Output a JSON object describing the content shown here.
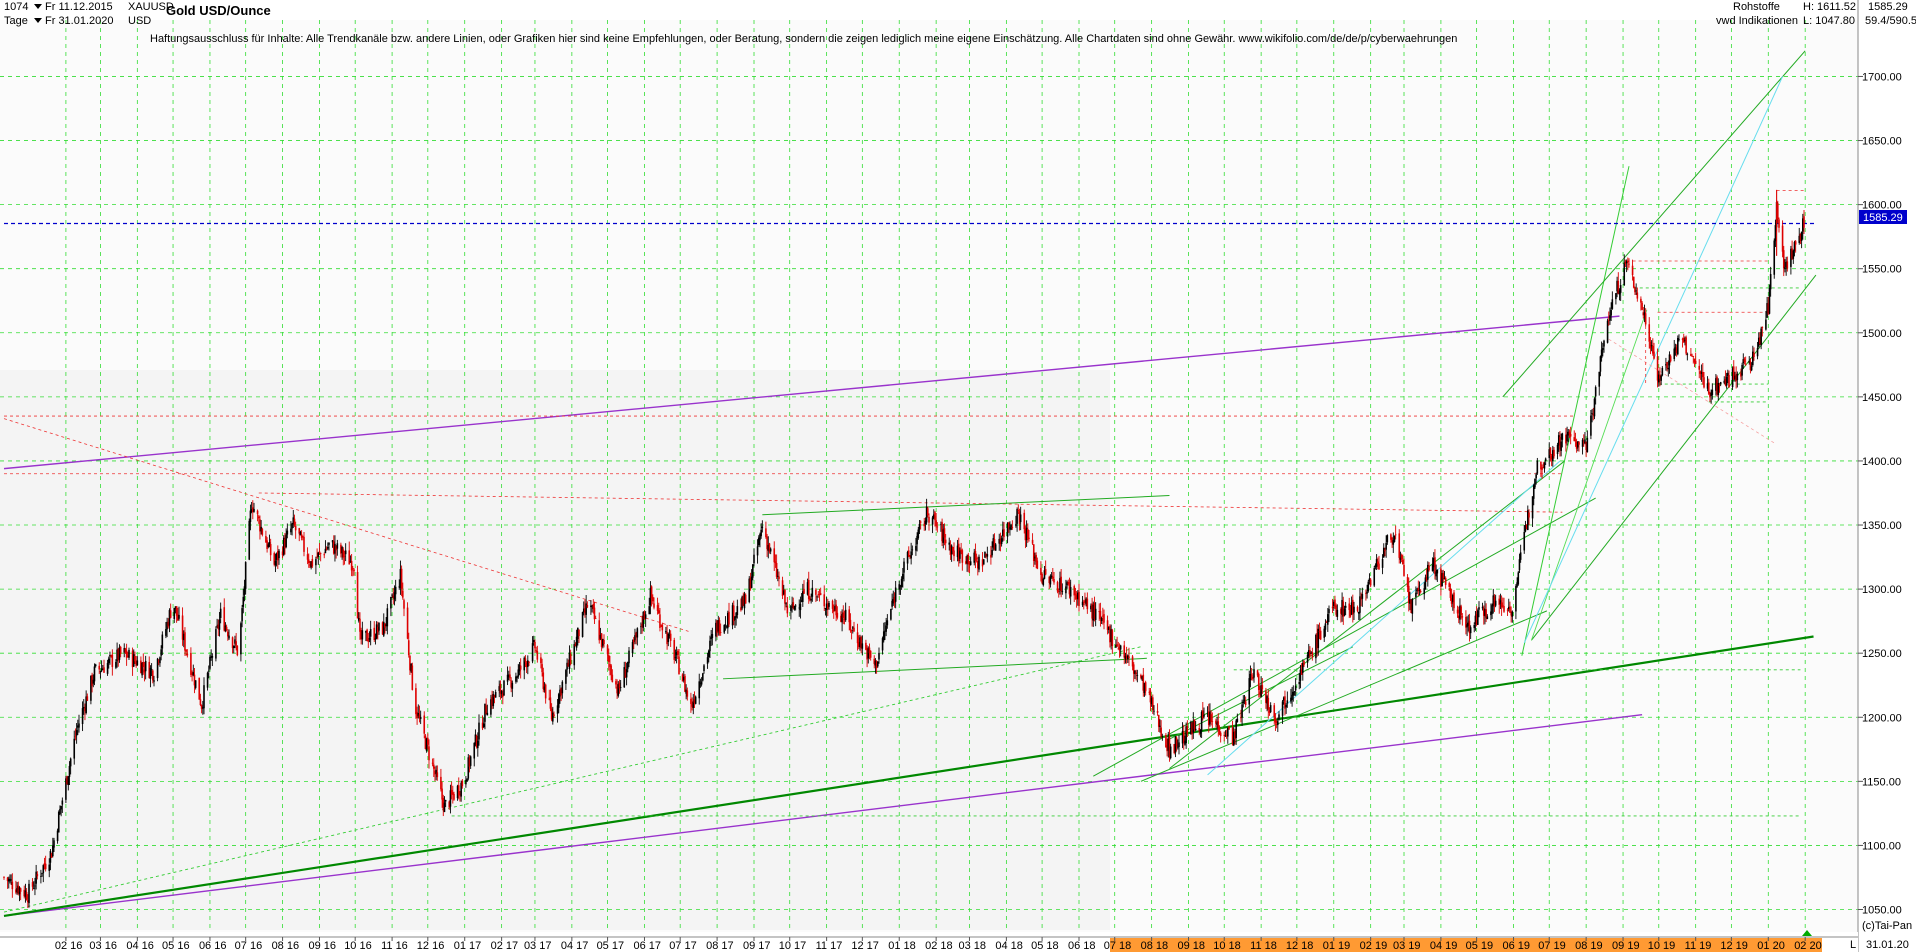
{
  "header": {
    "bars": "1074",
    "start_date": "Fr 11.12.2015",
    "end_date": "Fr 31.01.2020",
    "period": "Tage",
    "symbol": "XAUUSD",
    "currency": "USD",
    "title": "Gold USD/Ounce",
    "category": "Rohstoffe",
    "source": "vwd Indikationen",
    "high": "H:  1611.52",
    "low": "L:  1047.80",
    "last": "1585.29",
    "range": "59.4/590.5"
  },
  "disclaimer": "Haftungsausschluss für Inhalte: Alle Trendkanäle bzw. andere Linien, oder Grafiken hier sind keine Empfehlungen, oder Beratung, sondern die zeigen lediglich meine eigene Einschätzung. Alle Chartdaten sind ohne Gewähr.  www.wikifolio.com/de/de/p/cyberwaehrungen",
  "footer": {
    "copyright": "(c)Tai-Pan",
    "last_date": "31.01.20",
    "scale_mode": "L"
  },
  "colors": {
    "up_candle": "#000000",
    "down_candle": "#dd0000",
    "grid": "#33dd33",
    "price_line": "#0000cc",
    "price_badge": "#0000cc",
    "purple": "#9933cc",
    "green_thick": "#008800",
    "green_thin": "#22aa22",
    "cyan": "#66ddee",
    "red_dash": "#ee3333"
  },
  "chart_data": {
    "type": "candlestick",
    "title": "Gold USD/Ounce",
    "x_range": [
      "2015-12-11",
      "2020-01-31"
    ],
    "ylim": [
      1030,
      1740
    ],
    "y_ticks": [
      1050,
      1100,
      1150,
      1200,
      1250,
      1300,
      1350,
      1400,
      1450,
      1500,
      1550,
      1600,
      1650,
      1700
    ],
    "y_tick_labels": [
      "1050.00",
      "1100.00",
      "1150.00",
      "1200.00",
      "1250.00",
      "1300.00",
      "1350.00",
      "1400.00",
      "1450.00",
      "1500.00",
      "1550.00",
      "1600.00",
      "1650.00",
      "1700.00"
    ],
    "x_tick_labels": [
      "02 16",
      "03 16",
      "04 16",
      "05 16",
      "06 16",
      "07 16",
      "08 16",
      "09 16",
      "10 16",
      "11 16",
      "12 16",
      "01 17",
      "02 17",
      "03 17",
      "04 17",
      "05 17",
      "06 17",
      "07 17",
      "08 17",
      "09 17",
      "10 17",
      "11 17",
      "12 17",
      "01 18",
      "02 18",
      "03 18",
      "04 18",
      "05 18",
      "06 18",
      "07 18",
      "08 18",
      "09 18",
      "10 18",
      "11 18",
      "12 18",
      "01 19",
      "02 19",
      "03 19",
      "04 19",
      "05 19",
      "06 19",
      "07 19",
      "08 19",
      "09 19",
      "10 19",
      "11 19",
      "12 19",
      "01 20",
      "02 20"
    ],
    "last_price": 1585.29,
    "high": 1611.52,
    "low": 1047.8,
    "price_path": [
      [
        "2015-12-11",
        1075
      ],
      [
        "2015-12-31",
        1062
      ],
      [
        "2016-01-20",
        1095
      ],
      [
        "2016-02-10",
        1190
      ],
      [
        "2016-02-25",
        1235
      ],
      [
        "2016-03-20",
        1250
      ],
      [
        "2016-04-15",
        1235
      ],
      [
        "2016-05-01",
        1290
      ],
      [
        "2016-05-25",
        1210
      ],
      [
        "2016-06-10",
        1280
      ],
      [
        "2016-06-25",
        1250
      ],
      [
        "2016-07-06",
        1368
      ],
      [
        "2016-07-25",
        1320
      ],
      [
        "2016-08-10",
        1350
      ],
      [
        "2016-08-25",
        1320
      ],
      [
        "2016-09-10",
        1335
      ],
      [
        "2016-09-30",
        1320
      ],
      [
        "2016-10-05",
        1260
      ],
      [
        "2016-10-25",
        1270
      ],
      [
        "2016-11-08",
        1310
      ],
      [
        "2016-11-20",
        1210
      ],
      [
        "2016-12-15",
        1130
      ],
      [
        "2016-12-31",
        1150
      ],
      [
        "2017-01-20",
        1210
      ],
      [
        "2017-02-15",
        1235
      ],
      [
        "2017-03-01",
        1255
      ],
      [
        "2017-03-15",
        1200
      ],
      [
        "2017-04-15",
        1290
      ],
      [
        "2017-05-10",
        1220
      ],
      [
        "2017-06-06",
        1295
      ],
      [
        "2017-06-30",
        1240
      ],
      [
        "2017-07-10",
        1208
      ],
      [
        "2017-07-31",
        1270
      ],
      [
        "2017-08-25",
        1290
      ],
      [
        "2017-09-08",
        1350
      ],
      [
        "2017-09-30",
        1280
      ],
      [
        "2017-10-15",
        1300
      ],
      [
        "2017-11-15",
        1280
      ],
      [
        "2017-12-12",
        1240
      ],
      [
        "2017-12-31",
        1305
      ],
      [
        "2018-01-25",
        1360
      ],
      [
        "2018-02-15",
        1330
      ],
      [
        "2018-03-10",
        1320
      ],
      [
        "2018-04-11",
        1360
      ],
      [
        "2018-05-01",
        1310
      ],
      [
        "2018-05-25",
        1300
      ],
      [
        "2018-06-15",
        1280
      ],
      [
        "2018-07-05",
        1255
      ],
      [
        "2018-07-25",
        1225
      ],
      [
        "2018-08-16",
        1175
      ],
      [
        "2018-09-15",
        1200
      ],
      [
        "2018-10-09",
        1185
      ],
      [
        "2018-10-25",
        1235
      ],
      [
        "2018-11-13",
        1200
      ],
      [
        "2018-12-10",
        1245
      ],
      [
        "2018-12-31",
        1285
      ],
      [
        "2019-01-20",
        1285
      ],
      [
        "2019-02-20",
        1345
      ],
      [
        "2019-03-07",
        1285
      ],
      [
        "2019-03-25",
        1320
      ],
      [
        "2019-04-23",
        1270
      ],
      [
        "2019-05-15",
        1290
      ],
      [
        "2019-05-31",
        1285
      ],
      [
        "2019-06-20",
        1395
      ],
      [
        "2019-07-15",
        1420
      ],
      [
        "2019-08-01",
        1410
      ],
      [
        "2019-08-20",
        1515
      ],
      [
        "2019-09-04",
        1555
      ],
      [
        "2019-09-20",
        1510
      ],
      [
        "2019-10-01",
        1465
      ],
      [
        "2019-10-20",
        1495
      ],
      [
        "2019-11-12",
        1455
      ],
      [
        "2019-11-30",
        1465
      ],
      [
        "2019-12-20",
        1480
      ],
      [
        "2020-01-01",
        1520
      ],
      [
        "2020-01-08",
        1600
      ],
      [
        "2020-01-15",
        1550
      ],
      [
        "2020-01-25",
        1570
      ],
      [
        "2020-01-31",
        1585
      ]
    ]
  }
}
